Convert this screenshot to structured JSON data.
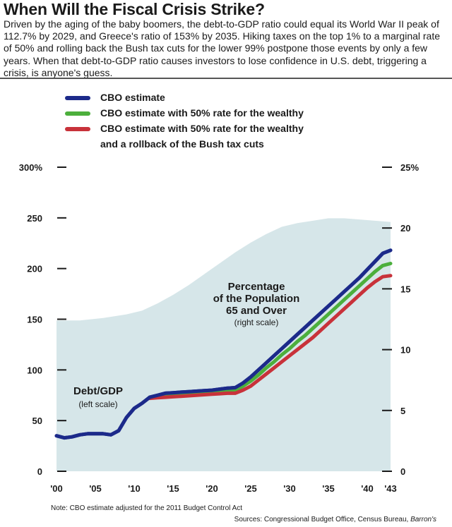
{
  "header": {
    "title": "When Will the Fiscal Crisis Strike?",
    "description": "Driven by the aging of the baby boomers, the debt-to-GDP ratio could equal its World War II peak of 112.7% by 2029, and Greece's ratio of 153% by 2035. Hiking taxes on the top 1% to a marginal rate of 50% and rolling back the Bush tax cuts for the lower 99% postpone those events by only a few years. When that debt-to-GDP ratio causes investors to lose confidence in U.S. debt, triggering a crisis, is anyone's guess."
  },
  "legend": [
    {
      "label": "CBO estimate",
      "color": "#1c2a8a"
    },
    {
      "label": "CBO estimate with 50% rate for the wealthy",
      "color": "#4caf3c"
    },
    {
      "label": "CBO estimate with 50% rate for the wealthy",
      "label2": "and a rollback of the Bush tax cuts",
      "color": "#c8323a"
    }
  ],
  "annotations": {
    "population_line1": "Percentage",
    "population_line2": "of the Population",
    "population_line3": "65 and Over",
    "population_sub": "(right scale)",
    "debt_line1": "Debt/GDP",
    "debt_sub": "(left scale)"
  },
  "footer": {
    "note": "Note: CBO estimate adjusted for the 2011 Budget Control Act",
    "sources_prefix": "Sources: Congressional Budget Office, Census Bureau, ",
    "sources_italic": "Barron's"
  },
  "chart_data": {
    "type": "line",
    "title": "When Will the Fiscal Crisis Strike?",
    "xlabel": "",
    "ylabel_left": "Debt/GDP (%)",
    "ylabel_right": "Percentage of the Population 65 and Over",
    "xlim": [
      2000,
      2043
    ],
    "ylim_left": [
      0,
      300
    ],
    "ylim_right": [
      0,
      25
    ],
    "x_tick_labels": [
      "'00",
      "'05",
      "'10",
      "'15",
      "'20",
      "'25",
      "'30",
      "'35",
      "'40",
      "'43"
    ],
    "x_tick_values": [
      2000,
      2005,
      2010,
      2015,
      2020,
      2025,
      2030,
      2035,
      2040,
      2043
    ],
    "left_tick_labels": [
      "0",
      "50",
      "100",
      "150",
      "200",
      "250",
      "300%"
    ],
    "left_tick_values": [
      0,
      50,
      100,
      150,
      200,
      250,
      300
    ],
    "right_tick_labels": [
      "0",
      "5",
      "10",
      "15",
      "20",
      "25%"
    ],
    "right_tick_values": [
      0,
      5,
      10,
      15,
      20,
      25
    ],
    "area_series": {
      "name": "Percentage of the Population 65 and Over",
      "axis": "right",
      "color": "#d6e6e9",
      "x": [
        2000,
        2003,
        2006,
        2009,
        2011,
        2013,
        2015,
        2017,
        2019,
        2021,
        2023,
        2025,
        2027,
        2029,
        2031,
        2033,
        2035,
        2037,
        2039,
        2041,
        2043
      ],
      "values": [
        12.4,
        12.4,
        12.6,
        12.9,
        13.2,
        13.8,
        14.5,
        15.3,
        16.2,
        17.1,
        18.0,
        18.8,
        19.5,
        20.1,
        20.4,
        20.6,
        20.8,
        20.8,
        20.7,
        20.6,
        20.5
      ]
    },
    "series": [
      {
        "name": "CBO estimate",
        "color": "#1c2a8a",
        "x": [
          2000,
          2001,
          2002,
          2003,
          2004,
          2005,
          2006,
          2007,
          2008,
          2009,
          2010,
          2011,
          2012,
          2013,
          2014,
          2015,
          2016,
          2017,
          2018,
          2019,
          2020,
          2021,
          2022,
          2023,
          2024,
          2025,
          2026,
          2027,
          2028,
          2029,
          2030,
          2031,
          2032,
          2033,
          2034,
          2035,
          2036,
          2037,
          2038,
          2039,
          2040,
          2041,
          2042,
          2043
        ],
        "values": [
          35,
          33,
          34,
          36,
          37,
          37,
          37,
          36,
          40,
          53,
          62,
          67,
          73,
          75,
          77,
          77.5,
          78,
          78.5,
          79,
          79.5,
          80,
          81,
          82,
          82.5,
          87,
          93,
          100,
          107,
          114,
          121,
          128,
          135,
          142,
          149,
          156,
          163,
          170,
          177,
          184,
          191,
          199,
          207,
          215,
          218
        ]
      },
      {
        "name": "CBO estimate with 50% rate for the wealthy",
        "color": "#4caf3c",
        "x": [
          2012,
          2013,
          2014,
          2015,
          2016,
          2017,
          2018,
          2019,
          2020,
          2021,
          2022,
          2023,
          2024,
          2025,
          2026,
          2027,
          2028,
          2029,
          2030,
          2031,
          2032,
          2033,
          2034,
          2035,
          2036,
          2037,
          2038,
          2039,
          2040,
          2041,
          2042,
          2043
        ],
        "values": [
          73,
          74,
          75,
          75.5,
          76,
          76.5,
          77,
          77.5,
          78,
          78.5,
          79,
          79.5,
          84,
          89,
          95,
          102,
          108,
          115,
          121,
          128,
          134,
          141,
          148,
          155,
          162,
          169,
          176,
          183,
          190,
          197,
          203,
          205
        ]
      },
      {
        "name": "CBO estimate with 50% rate for the wealthy and a rollback of the Bush tax cuts",
        "color": "#c8323a",
        "x": [
          2012,
          2013,
          2014,
          2015,
          2016,
          2017,
          2018,
          2019,
          2020,
          2021,
          2022,
          2023,
          2024,
          2025,
          2026,
          2027,
          2028,
          2029,
          2030,
          2031,
          2032,
          2033,
          2034,
          2035,
          2036,
          2037,
          2038,
          2039,
          2040,
          2041,
          2042,
          2043
        ],
        "values": [
          72,
          72.5,
          73,
          73.5,
          74,
          74.5,
          75,
          75.5,
          76,
          76.5,
          77,
          77,
          80,
          84,
          90,
          96,
          102,
          108,
          114,
          120,
          126,
          132,
          139,
          146,
          153,
          160,
          167,
          174,
          181,
          187,
          192,
          193
        ]
      }
    ]
  }
}
